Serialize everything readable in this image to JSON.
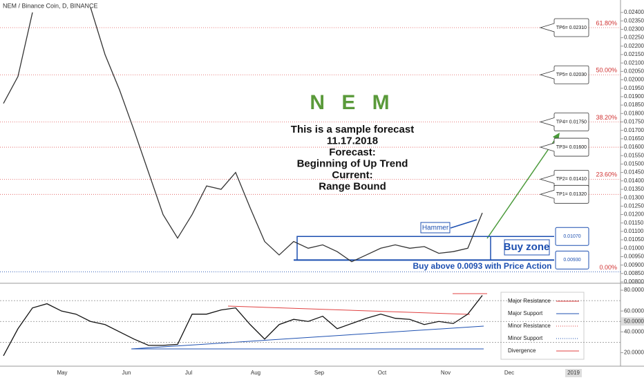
{
  "title": "NEM / Binance Coin, D, BINANCE",
  "heading": "N E M",
  "forecast": [
    "This is a sample forecast",
    "11.17.2018",
    "Forecast:",
    "Beginning of Up Trend",
    "Current:",
    "Range Bound"
  ],
  "hammer": "Hammer",
  "xticks": [
    "May",
    "Jun",
    "Jul",
    "Aug",
    "Sep",
    "Oct",
    "Nov",
    "Dec",
    "2019"
  ],
  "legend": [
    "Major Resistance",
    "Major Support",
    "Minor Resistance",
    "Minor Support",
    "Divergence"
  ],
  "chart_data": [
    {
      "type": "line",
      "color": "#333333",
      "values": [
        0.0186,
        0.0202,
        0.024,
        null,
        null,
        null,
        0.0243,
        0.0215,
        0.0194,
        0.017,
        0.0145,
        0.012,
        0.0106,
        0.012,
        0.0137,
        0.0135,
        0.0145,
        0.0124,
        0.0104,
        0.0096,
        0.0104,
        0.01,
        0.0102,
        0.0098,
        0.0092,
        0.0096,
        0.01,
        0.0102,
        0.01,
        0.0101,
        0.0097,
        0.0098,
        0.01,
        0.0121
      ],
      "ylim": [
        0.00792,
        0.02474
      ],
      "yticks": [
        {
          "value": 0.008,
          "label": "0.00800"
        },
        {
          "value": 0.0085,
          "label": "0.00850"
        },
        {
          "value": 0.009,
          "label": "0.00900"
        },
        {
          "value": 0.0095,
          "label": "0.00950"
        },
        {
          "value": 0.01,
          "label": "0.01000"
        },
        {
          "value": 0.0105,
          "label": "0.01050"
        },
        {
          "value": 0.011,
          "label": "0.01100"
        },
        {
          "value": 0.0115,
          "label": "0.01150"
        },
        {
          "value": 0.012,
          "label": "0.01200"
        },
        {
          "value": 0.0125,
          "label": "0.01250"
        },
        {
          "value": 0.013,
          "label": "0.01300"
        },
        {
          "value": 0.0135,
          "label": "0.01350"
        },
        {
          "value": 0.014,
          "label": "0.01400"
        },
        {
          "value": 0.0145,
          "label": "0.01450"
        },
        {
          "value": 0.015,
          "label": "0.01500"
        },
        {
          "value": 0.0155,
          "label": "0.01550"
        },
        {
          "value": 0.016,
          "label": "0.01600"
        },
        {
          "value": 0.0165,
          "label": "0.01650"
        },
        {
          "value": 0.017,
          "label": "0.01700"
        },
        {
          "value": 0.0175,
          "label": "0.01750"
        },
        {
          "value": 0.018,
          "label": "0.01800"
        },
        {
          "value": 0.0185,
          "label": "0.01850"
        },
        {
          "value": 0.019,
          "label": "0.01900"
        },
        {
          "value": 0.0195,
          "label": "0.01950"
        },
        {
          "value": 0.02,
          "label": "0.02000"
        },
        {
          "value": 0.0205,
          "label": "0.02050"
        },
        {
          "value": 0.021,
          "label": "0.02100"
        },
        {
          "value": 0.0215,
          "label": "0.02150"
        },
        {
          "value": 0.022,
          "label": "0.02200"
        },
        {
          "value": 0.0225,
          "label": "0.02250"
        },
        {
          "value": 0.023,
          "label": "0.02300"
        },
        {
          "value": 0.0235,
          "label": "0.02350"
        },
        {
          "value": 0.024,
          "label": "0.02400"
        }
      ],
      "levels": [
        {
          "name": "TP6= 0.02310",
          "value": 0.0231,
          "fib": "61.80%"
        },
        {
          "name": "TP5= 0.02030",
          "value": 0.0203,
          "fib": "50.00%"
        },
        {
          "name": "TP4= 0.01750",
          "value": 0.0175,
          "fib": "38.20%"
        },
        {
          "name": "TP3= 0.01600",
          "value": 0.016
        },
        {
          "name": "TP2= 0.01410",
          "value": 0.0141,
          "fib": "23.60%"
        },
        {
          "name": "TP1= 0.01320",
          "value": 0.0132
        },
        {
          "value": 0.0086,
          "fib": "0.00%"
        }
      ],
      "buy_zone": {
        "label": "Buy zone",
        "top": 0.0107,
        "bottom": 0.0093,
        "top_label": "0.01070",
        "bottom_label": "0.00930",
        "note": "Buy above 0.0093 with Price Action"
      }
    },
    {
      "type": "line",
      "color": "#111111",
      "values": [
        17,
        43,
        63,
        67,
        60,
        57,
        50,
        47,
        40,
        33,
        27,
        27,
        28,
        57,
        57,
        61,
        63,
        47,
        33,
        47,
        52,
        50,
        55,
        43,
        48,
        53,
        57,
        53,
        52,
        47,
        50,
        48,
        57,
        75
      ],
      "ylim": [
        7,
        86
      ],
      "yticks": [
        {
          "value": 80,
          "label": "80.0000"
        },
        {
          "value": 60,
          "label": "60.0000"
        },
        {
          "value": 50,
          "label": "50.0000"
        },
        {
          "value": 40,
          "label": "40.0000"
        },
        {
          "value": 20,
          "label": "20.0000"
        }
      ],
      "levels": [
        70,
        50,
        30
      ]
    }
  ]
}
